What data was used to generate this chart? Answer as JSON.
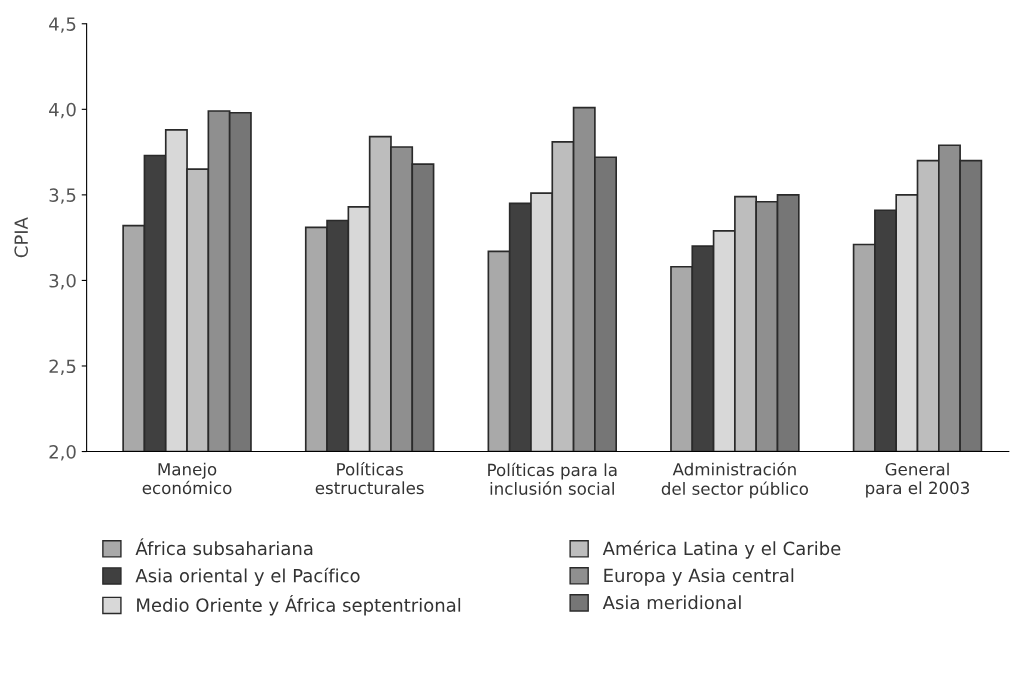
{
  "chart_data": {
    "type": "bar",
    "ylabel": "CPIA",
    "categories": [
      "Manejo\neconómico",
      "Políticas\nestructurales",
      "Políticas para la\ninclusión social",
      "Administración\ndel sector público",
      "General\npara el 2003"
    ],
    "series": [
      {
        "name": "África subsahariana",
        "color": "#a9a9a9",
        "values": [
          3.32,
          3.31,
          3.17,
          3.08,
          3.21
        ]
      },
      {
        "name": "Asia oriental y el Pacífico",
        "color": "#404040",
        "values": [
          3.73,
          3.35,
          3.45,
          3.2,
          3.41
        ]
      },
      {
        "name": "Medio Oriente y África septentrional",
        "color": "#d8d8d8",
        "values": [
          3.88,
          3.43,
          3.51,
          3.29,
          3.5
        ]
      },
      {
        "name": "América Latina y el Caribe",
        "color": "#bdbdbd",
        "values": [
          3.65,
          3.84,
          3.81,
          3.49,
          3.7
        ]
      },
      {
        "name": "Europa y Asia central",
        "color": "#8f8f8f",
        "values": [
          3.99,
          3.78,
          4.01,
          3.46,
          3.79
        ]
      },
      {
        "name": "Asia meridional",
        "color": "#767676",
        "values": [
          3.98,
          3.68,
          3.72,
          3.5,
          3.7
        ]
      }
    ],
    "ylim": [
      2.0,
      4.5
    ],
    "yticks": [
      {
        "value": 2.0,
        "label": "2,0"
      },
      {
        "value": 2.5,
        "label": "2,5"
      },
      {
        "value": 3.0,
        "label": "3,0"
      },
      {
        "value": 3.5,
        "label": "3,5"
      },
      {
        "value": 4.0,
        "label": "4,0"
      },
      {
        "value": 4.5,
        "label": "4,5"
      }
    ],
    "grid": false,
    "legend": "bottom"
  }
}
